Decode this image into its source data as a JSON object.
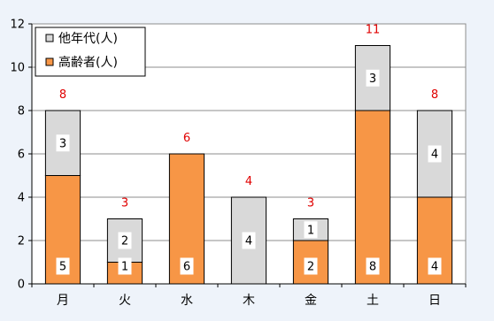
{
  "chart_data": {
    "type": "bar",
    "stacked": true,
    "categories": [
      "月",
      "火",
      "水",
      "木",
      "金",
      "土",
      "日"
    ],
    "series": [
      {
        "name": "高齢者(人)",
        "values": [
          5,
          1,
          6,
          0,
          2,
          8,
          4
        ],
        "color": "#f79646"
      },
      {
        "name": "他年代(人)",
        "values": [
          3,
          2,
          0,
          4,
          1,
          3,
          4
        ],
        "color": "#d9d9d9"
      }
    ],
    "totals": [
      8,
      3,
      6,
      4,
      3,
      11,
      8
    ],
    "ylim": [
      0,
      12
    ],
    "yticks": [
      0,
      2,
      4,
      6,
      8,
      10,
      12
    ],
    "grid": true,
    "legend_position": "top-left",
    "colors": {
      "background": "#eef3fa",
      "plot_background": "#ffffff",
      "total_label": "#e00000",
      "bar_border": "#000000"
    }
  }
}
